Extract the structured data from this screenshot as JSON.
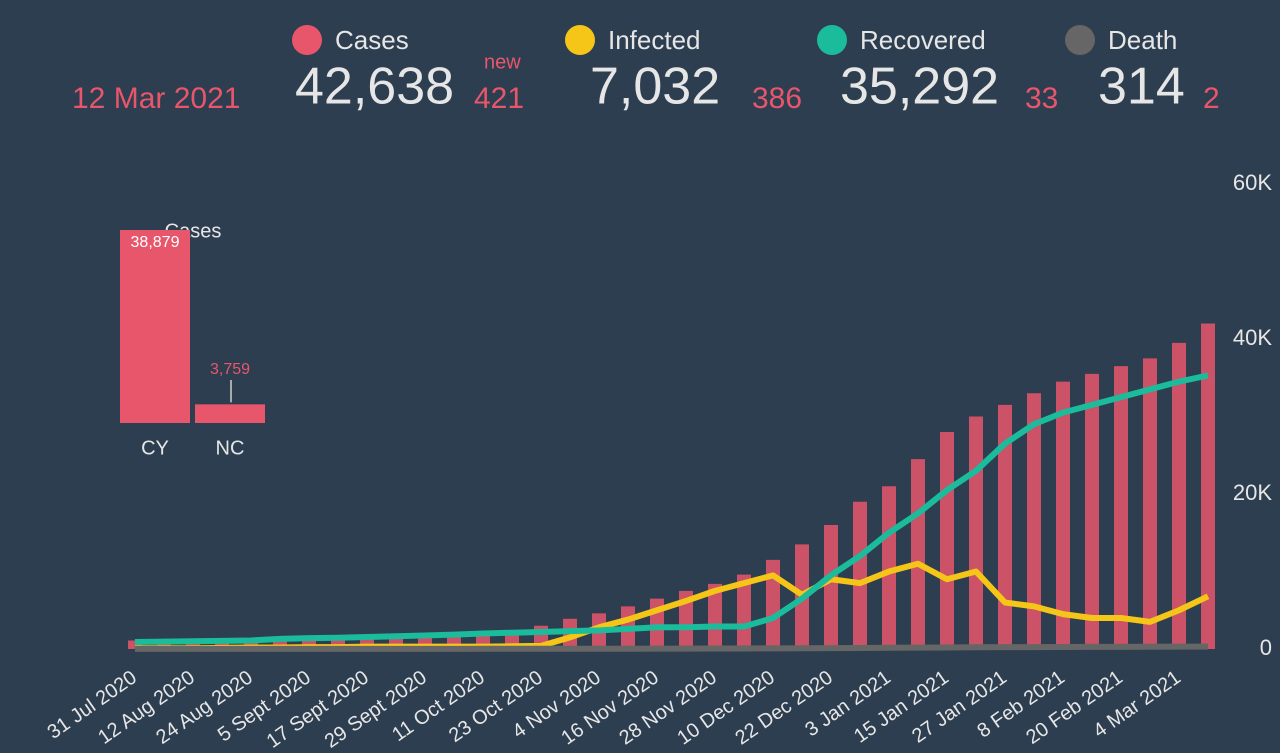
{
  "header": {
    "date": "12 Mar 2021",
    "new_label": "new"
  },
  "summary": [
    {
      "total": "42,638",
      "new": "421"
    },
    {
      "total": "7,032",
      "new": "386"
    },
    {
      "total": "35,292",
      "new": "33"
    },
    {
      "total": "314",
      "new": "2"
    }
  ],
  "chart_data": [
    {
      "type": "bar",
      "categories": [
        "31 Jul 2020",
        null,
        "12 Aug 2020",
        null,
        "24 Aug 2020",
        null,
        "5 Sept 2020",
        null,
        "17 Sept 2020",
        null,
        "29 Sept 2020",
        null,
        "11 Oct 2020",
        null,
        "23 Oct 2020",
        null,
        "4 Nov 2020",
        null,
        "16 Nov 2020",
        null,
        "28 Nov 2020",
        null,
        "10 Dec 2020",
        null,
        "22 Dec 2020",
        null,
        "3 Jan 2021",
        null,
        "15 Jan 2021",
        null,
        "27 Jan 2021",
        null,
        "8 Feb 2021",
        null,
        "20 Feb 2021",
        null,
        "4 Mar 2021",
        null
      ],
      "series": [
        {
          "name": "Cases",
          "type": "bar",
          "color": "#e8566b",
          "values": [
            1100,
            1250,
            1300,
            1350,
            1450,
            1500,
            1550,
            1600,
            1650,
            1750,
            1800,
            1950,
            2100,
            2400,
            3000,
            3900,
            4600,
            5500,
            6500,
            7500,
            8400,
            9600,
            11500,
            13500,
            16000,
            19000,
            21000,
            24500,
            28000,
            30000,
            31500,
            33000,
            34500,
            35500,
            36500,
            37500,
            39500,
            42000
          ]
        },
        {
          "name": "Infected",
          "type": "line",
          "color": "#f5c518",
          "values": [
            100,
            100,
            100,
            150,
            200,
            200,
            250,
            250,
            300,
            300,
            300,
            300,
            300,
            350,
            400,
            1500,
            2800,
            3800,
            5000,
            6200,
            7500,
            8500,
            9500,
            7000,
            9000,
            8500,
            10000,
            11000,
            9000,
            10000,
            6000,
            5500,
            4500,
            4000,
            4000,
            3500,
            5000,
            6800
          ]
        },
        {
          "name": "Recovered",
          "type": "line",
          "color": "#1abc9c",
          "values": [
            900,
            950,
            1000,
            1050,
            1100,
            1300,
            1400,
            1450,
            1550,
            1650,
            1750,
            1850,
            2000,
            2100,
            2200,
            2300,
            2400,
            2600,
            2800,
            2800,
            2900,
            2900,
            4000,
            6500,
            9500,
            12000,
            15000,
            17500,
            20500,
            23000,
            26500,
            29000,
            30500,
            31500,
            32500,
            33500,
            34500,
            35300
          ]
        },
        {
          "name": "Death",
          "type": "line",
          "color": "#666666",
          "values": [
            19,
            20,
            21,
            21,
            22,
            22,
            22,
            23,
            23,
            23,
            23,
            24,
            25,
            26,
            28,
            30,
            32,
            36,
            42,
            50,
            60,
            70,
            85,
            100,
            120,
            135,
            155,
            175,
            200,
            220,
            235,
            250,
            260,
            270,
            280,
            290,
            300,
            313
          ]
        }
      ],
      "ylim": [
        0,
        60000
      ],
      "yticks": [
        0,
        {
          "value": 20000,
          "label": "20K"
        },
        {
          "value": 40000,
          "label": "40K"
        },
        {
          "value": 60000,
          "label": "60K"
        }
      ]
    },
    {
      "type": "bar",
      "title": "Cases",
      "categories": [
        "CY",
        "NC"
      ],
      "values": [
        38879,
        3759
      ],
      "value_labels": [
        "38,879",
        "3,759"
      ],
      "color": "#e8566b"
    }
  ]
}
